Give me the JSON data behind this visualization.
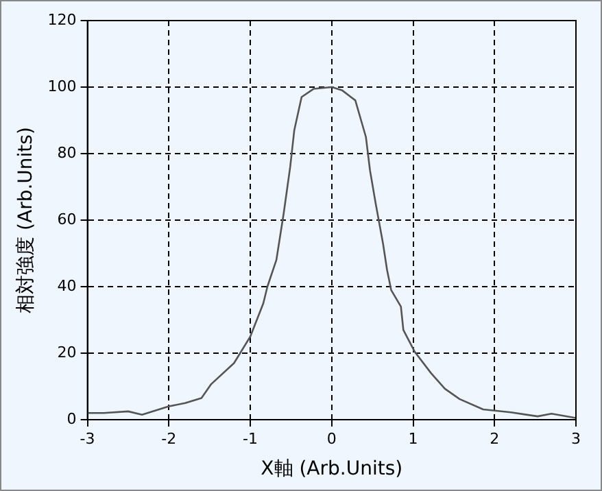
{
  "chart_data": {
    "type": "line",
    "xlabel": "X軸 (Arb.Units)",
    "ylabel": "相対強度 (Arb.Units)",
    "x": [
      -3,
      -2.8,
      -2.5,
      -2.33,
      -2,
      -1.8,
      -1.6,
      -1.48,
      -1.2,
      -1,
      -0.84,
      -0.79,
      -0.68,
      -0.59,
      -0.51,
      -0.46,
      -0.37,
      -0.22,
      0,
      0.13,
      0.29,
      0.42,
      0.47,
      0.54,
      0.63,
      0.68,
      0.73,
      0.85,
      0.88,
      1.02,
      1.22,
      1.39,
      1.57,
      1.86,
      2.2,
      2.53,
      2.7,
      3
    ],
    "series": [
      {
        "color": "#555555",
        "values": [
          2,
          2,
          2.5,
          1.5,
          4,
          5,
          6.5,
          10.7,
          17,
          25,
          35,
          40,
          48,
          62,
          76,
          87,
          97,
          99.5,
          100,
          99,
          96,
          85,
          75,
          65,
          53,
          45,
          39,
          34,
          27,
          20.4,
          14,
          9.3,
          6.2,
          3.1,
          2.2,
          1,
          1.8,
          0.5
        ]
      }
    ],
    "xlim": [
      -3,
      3
    ],
    "xticks": [
      -3,
      -2,
      -1,
      0,
      1,
      2,
      3
    ],
    "ylim": [
      0,
      120
    ],
    "yticks": [
      0,
      20,
      40,
      60,
      80,
      100,
      120
    ],
    "grid": true,
    "legend": false,
    "marker": "none",
    "line_style": "solid"
  }
}
